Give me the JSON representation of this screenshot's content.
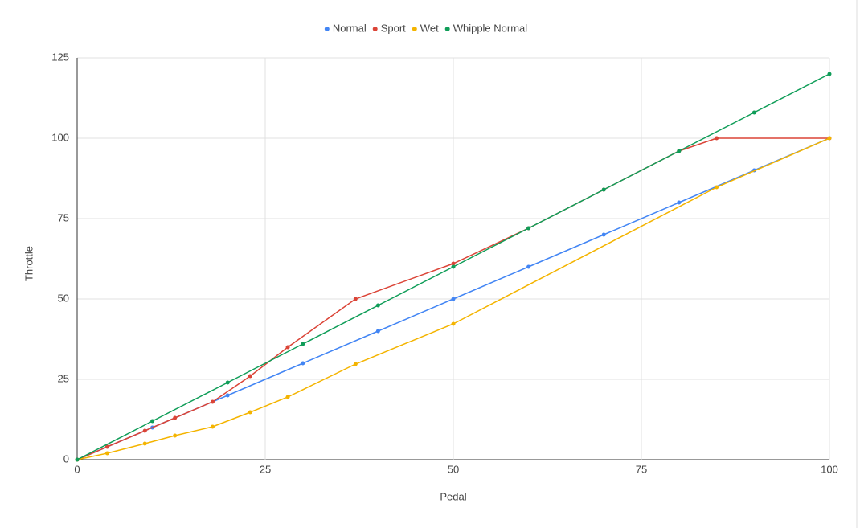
{
  "chart_data": {
    "type": "line",
    "x_label": "Pedal",
    "y_label": "Throttle",
    "xlim": [
      0,
      100
    ],
    "xticks": [
      0,
      25,
      50,
      75,
      100
    ],
    "ylim": [
      0,
      125
    ],
    "yticks": [
      0,
      25,
      50,
      75,
      100,
      125
    ],
    "grid": true,
    "legend": "top",
    "series": [
      {
        "name": "Normal",
        "color": "#4285f4",
        "x": [
          0,
          10,
          20,
          30,
          40,
          50,
          60,
          70,
          80,
          90,
          100
        ],
        "values": [
          0,
          10,
          20,
          30,
          40,
          50,
          60,
          70,
          80,
          90,
          100
        ]
      },
      {
        "name": "Sport",
        "color": "#db4437",
        "x": [
          0,
          4,
          9,
          13,
          18,
          23,
          28,
          37,
          50,
          60,
          70,
          80,
          85,
          100
        ],
        "values": [
          0,
          4,
          9,
          13,
          18,
          26,
          35,
          50,
          61,
          72,
          84,
          96,
          100,
          100
        ]
      },
      {
        "name": "Wet",
        "color": "#f4b400",
        "x": [
          0,
          4,
          9,
          13,
          18,
          23,
          28,
          37,
          50,
          85,
          100
        ],
        "values": [
          0,
          2,
          5,
          7.5,
          10.25,
          14.75,
          19.5,
          29.75,
          42.25,
          84.75,
          100
        ]
      },
      {
        "name": "Whipple Normal",
        "color": "#0f9d58",
        "x": [
          0,
          10,
          20,
          30,
          40,
          50,
          60,
          70,
          80,
          90,
          100
        ],
        "values": [
          0,
          12,
          24,
          36,
          48,
          60,
          72,
          84,
          96,
          108,
          120
        ]
      }
    ]
  }
}
